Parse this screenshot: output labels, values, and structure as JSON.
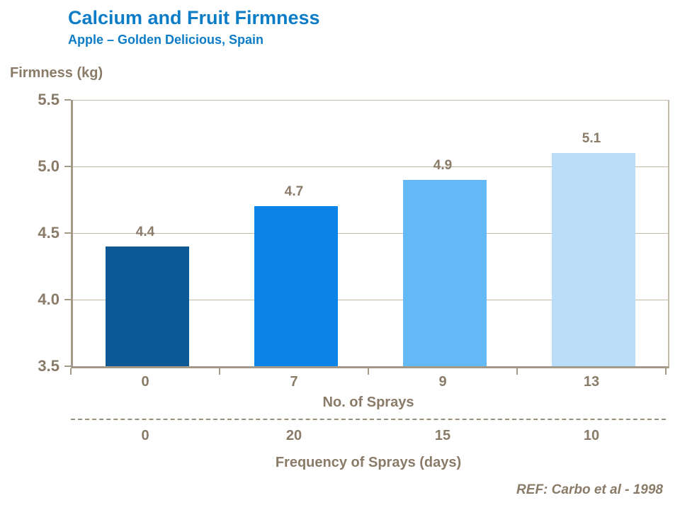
{
  "header": {
    "title": "Calcium and Fruit Firmness",
    "subtitle": "Apple – Golden Delicious, Spain"
  },
  "chart_data": {
    "type": "bar",
    "title": "Calcium and Fruit Firmness",
    "subtitle": "Apple – Golden Delicious, Spain",
    "ylabel": "Firmness (kg)",
    "xlabel": "No. of Sprays",
    "categories": [
      "0",
      "7",
      "9",
      "13"
    ],
    "values": [
      4.4,
      4.7,
      4.9,
      5.1
    ],
    "data_labels": [
      "4.4",
      "4.7",
      "4.9",
      "5.1"
    ],
    "ylim": [
      3.5,
      5.5
    ],
    "yticks": [
      5.5,
      5.0,
      4.5,
      4.0,
      3.5
    ],
    "ytick_labels": [
      "5.5",
      "5.0",
      "4.5",
      "4.0",
      "3.5"
    ],
    "grid": true,
    "legend": "none",
    "bar_colors": [
      "#0d5996",
      "#0a84e6",
      "#64b9f8",
      "#badefa"
    ],
    "secondary_axis": {
      "values": [
        "0",
        "20",
        "15",
        "10"
      ],
      "label": "Frequency of Sprays (days)"
    },
    "footnote": "REF: Carbo et al - 1998"
  },
  "style": {
    "title_color": "#0d7cc7",
    "text_color": "#8a7b69",
    "axis_color": "#a59a88",
    "grid_color": "#c2b9aa",
    "dash_color": "#9a8d7b"
  }
}
